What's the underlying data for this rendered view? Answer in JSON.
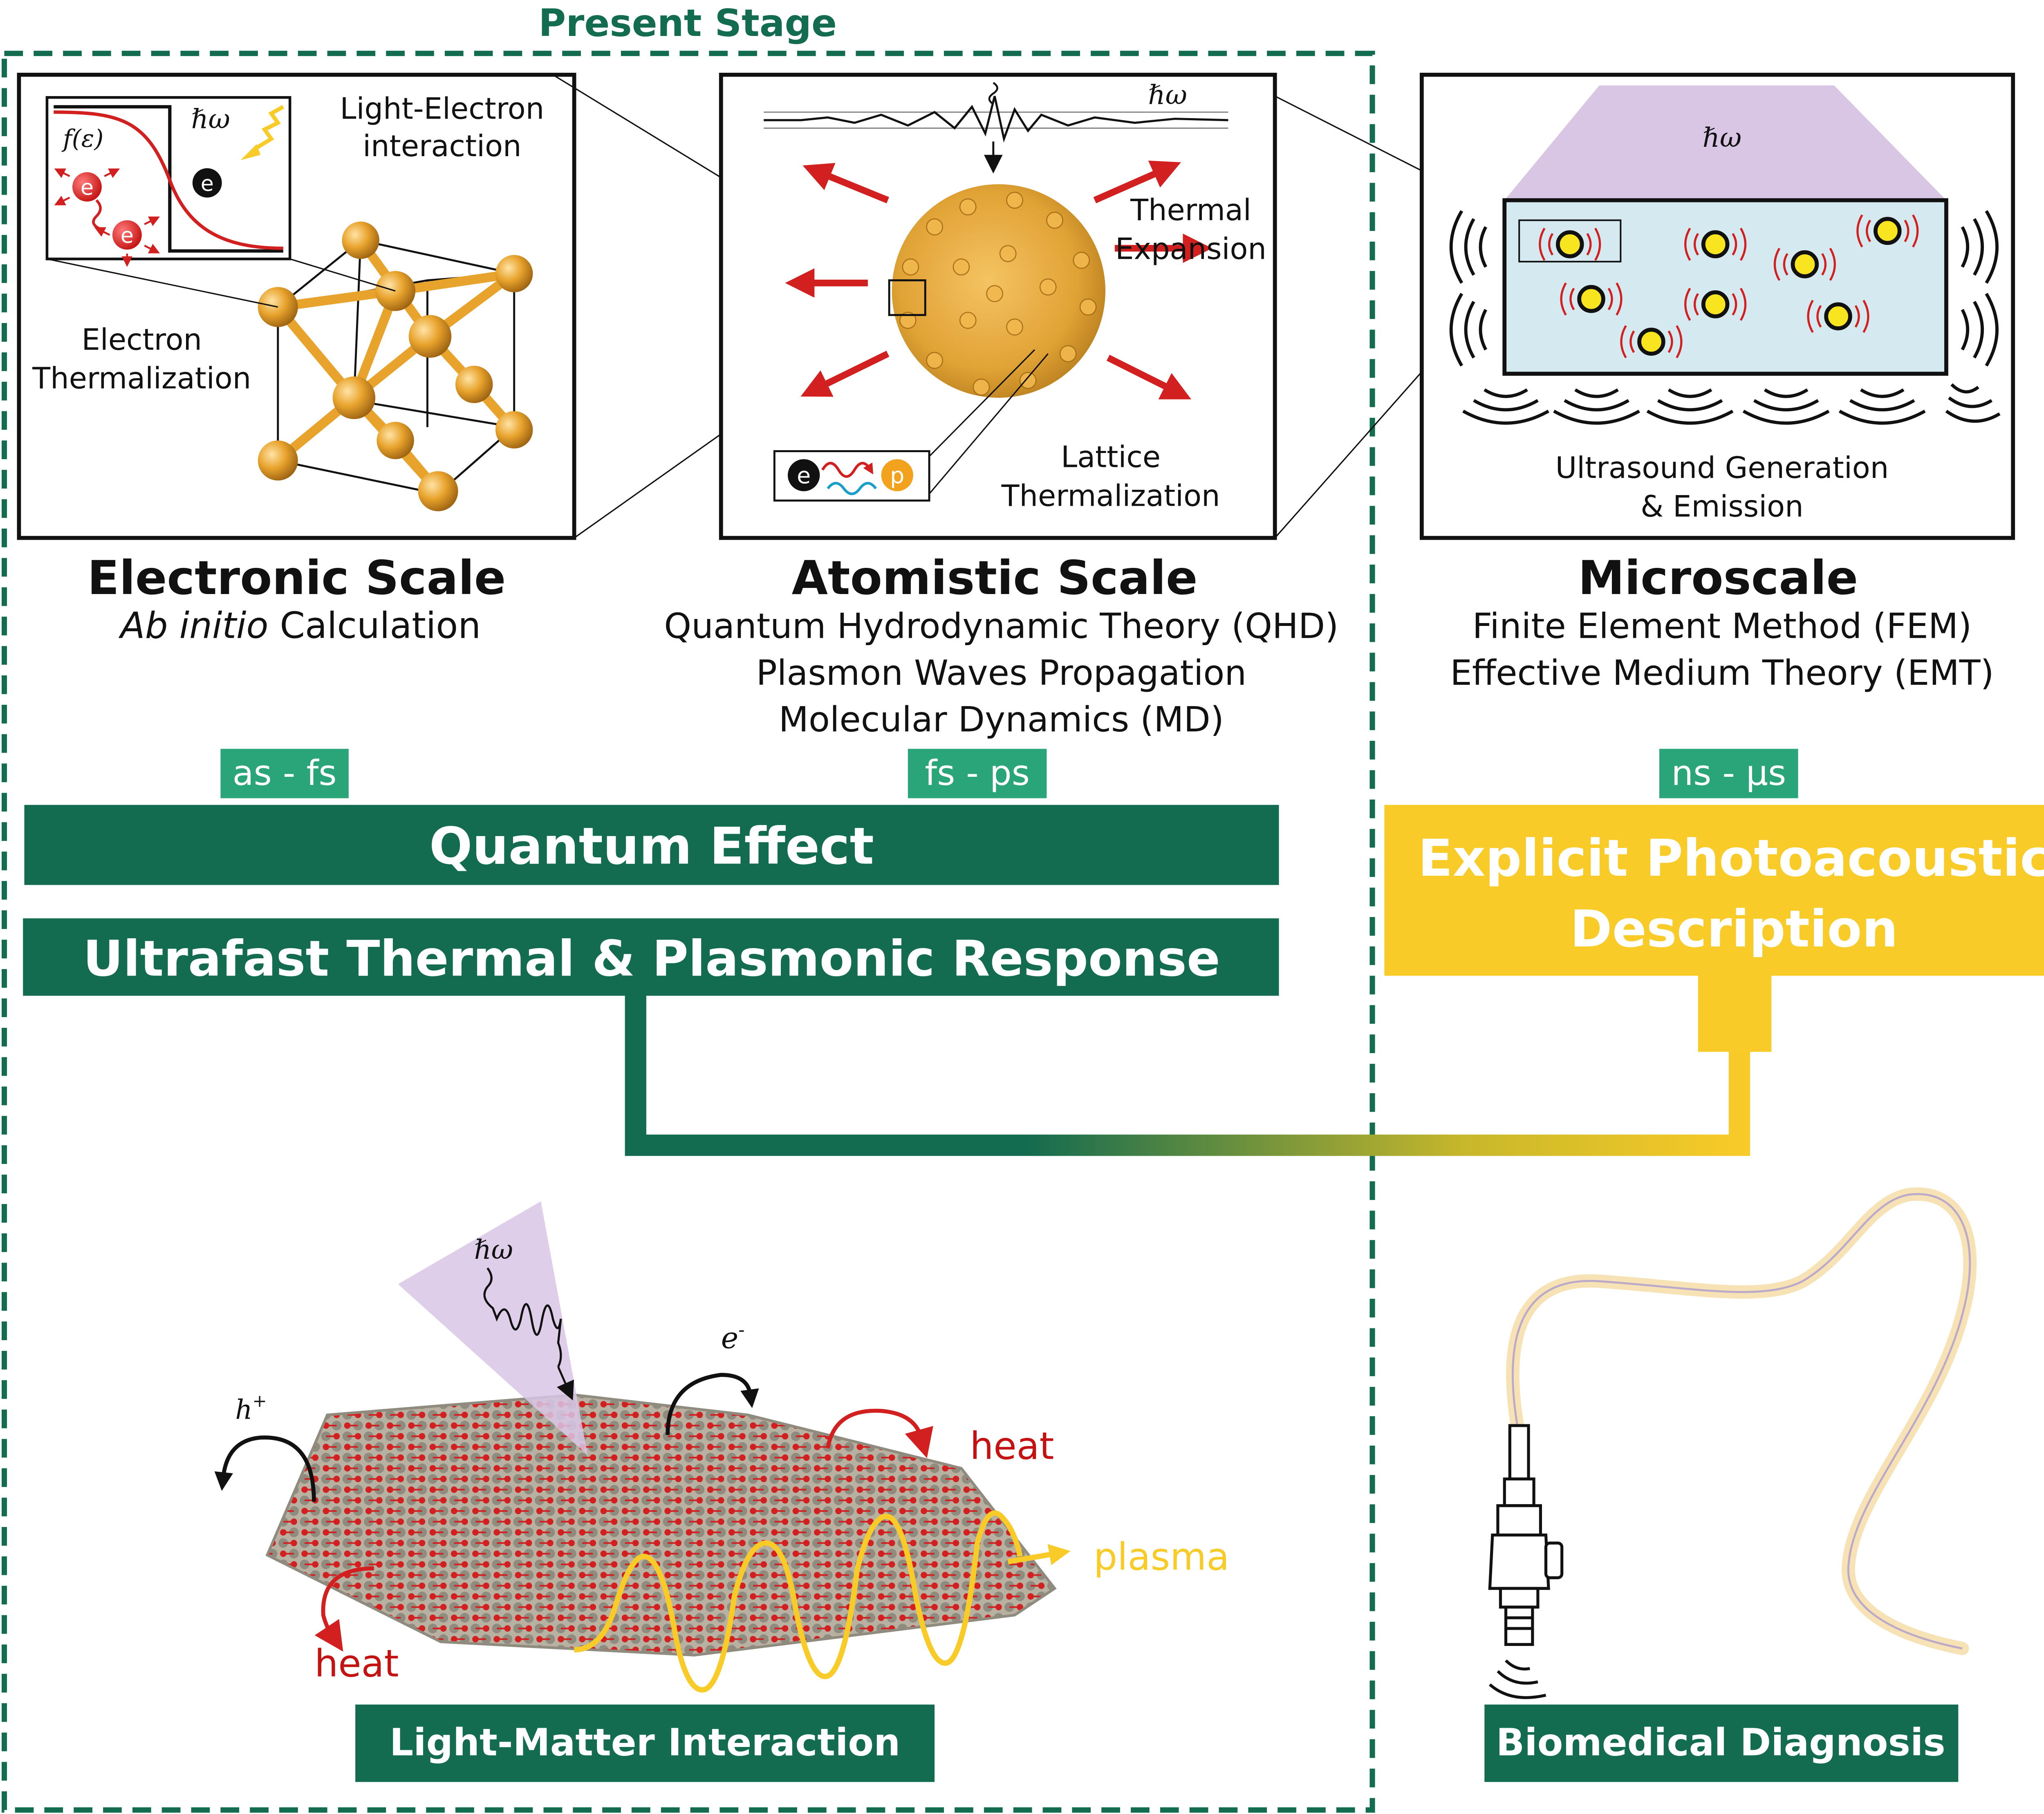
{
  "colors": {
    "green": "#136b50",
    "teal_badge": "#2aa57a",
    "yellow": "#f9cb28",
    "light_blue": "#d5eaf0",
    "purple": "#d9c6e5",
    "red": "#d21f1f",
    "gold": "#e8a32c",
    "gray_atom": "#8f8b7e"
  },
  "present_stage": {
    "label": "Present Stage"
  },
  "electronic": {
    "title": "Electronic Scale",
    "method_italic": "Ab initio",
    "method_rest": " Calculation",
    "inset_f": "f(ε)",
    "inset_hw": "ℏω",
    "electron": "e",
    "light_electron_1": "Light-Electron",
    "light_electron_2": "interaction",
    "thermalization_1": "Electron",
    "thermalization_2": "Thermalization"
  },
  "atomistic": {
    "title": "Atomistic Scale",
    "method_1": "Quantum Hydrodynamic Theory (QHD)",
    "method_2": "Plasmon Waves Propagation",
    "method_3": "Molecular Dynamics (MD)",
    "hw": "ℏω",
    "thermal_1": "Thermal",
    "thermal_2": "Expansion",
    "lattice_1": "Lattice",
    "lattice_2": "Thermalization",
    "e_label": "e",
    "p_label": "p"
  },
  "microscale": {
    "title": "Microscale",
    "method_1": "Finite Element Method (FEM)",
    "method_2": "Effective Medium Theory (EMT)",
    "hw": "ℏω",
    "ultrasound_1": "Ultrasound Generation",
    "ultrasound_2": "& Emission"
  },
  "badges": {
    "as_fs": "as - fs",
    "fs_ps": "fs - ps",
    "ns_us": "ns - μs"
  },
  "bars": {
    "quantum": "Quantum Effect",
    "ultrafast": "Ultrafast Thermal & Plasmonic Response",
    "explicit_1": "Explicit Photoacoustic",
    "explicit_2": "Description"
  },
  "bottom": {
    "hw": "ℏω",
    "electron": "e",
    "electron_sup": "-",
    "hole": "h",
    "hole_sup": "+",
    "heat_right": "heat",
    "heat_left": "heat",
    "plasma": "plasma",
    "light_matter": "Light-Matter Interaction",
    "biomedical": "Biomedical Diagnosis"
  }
}
